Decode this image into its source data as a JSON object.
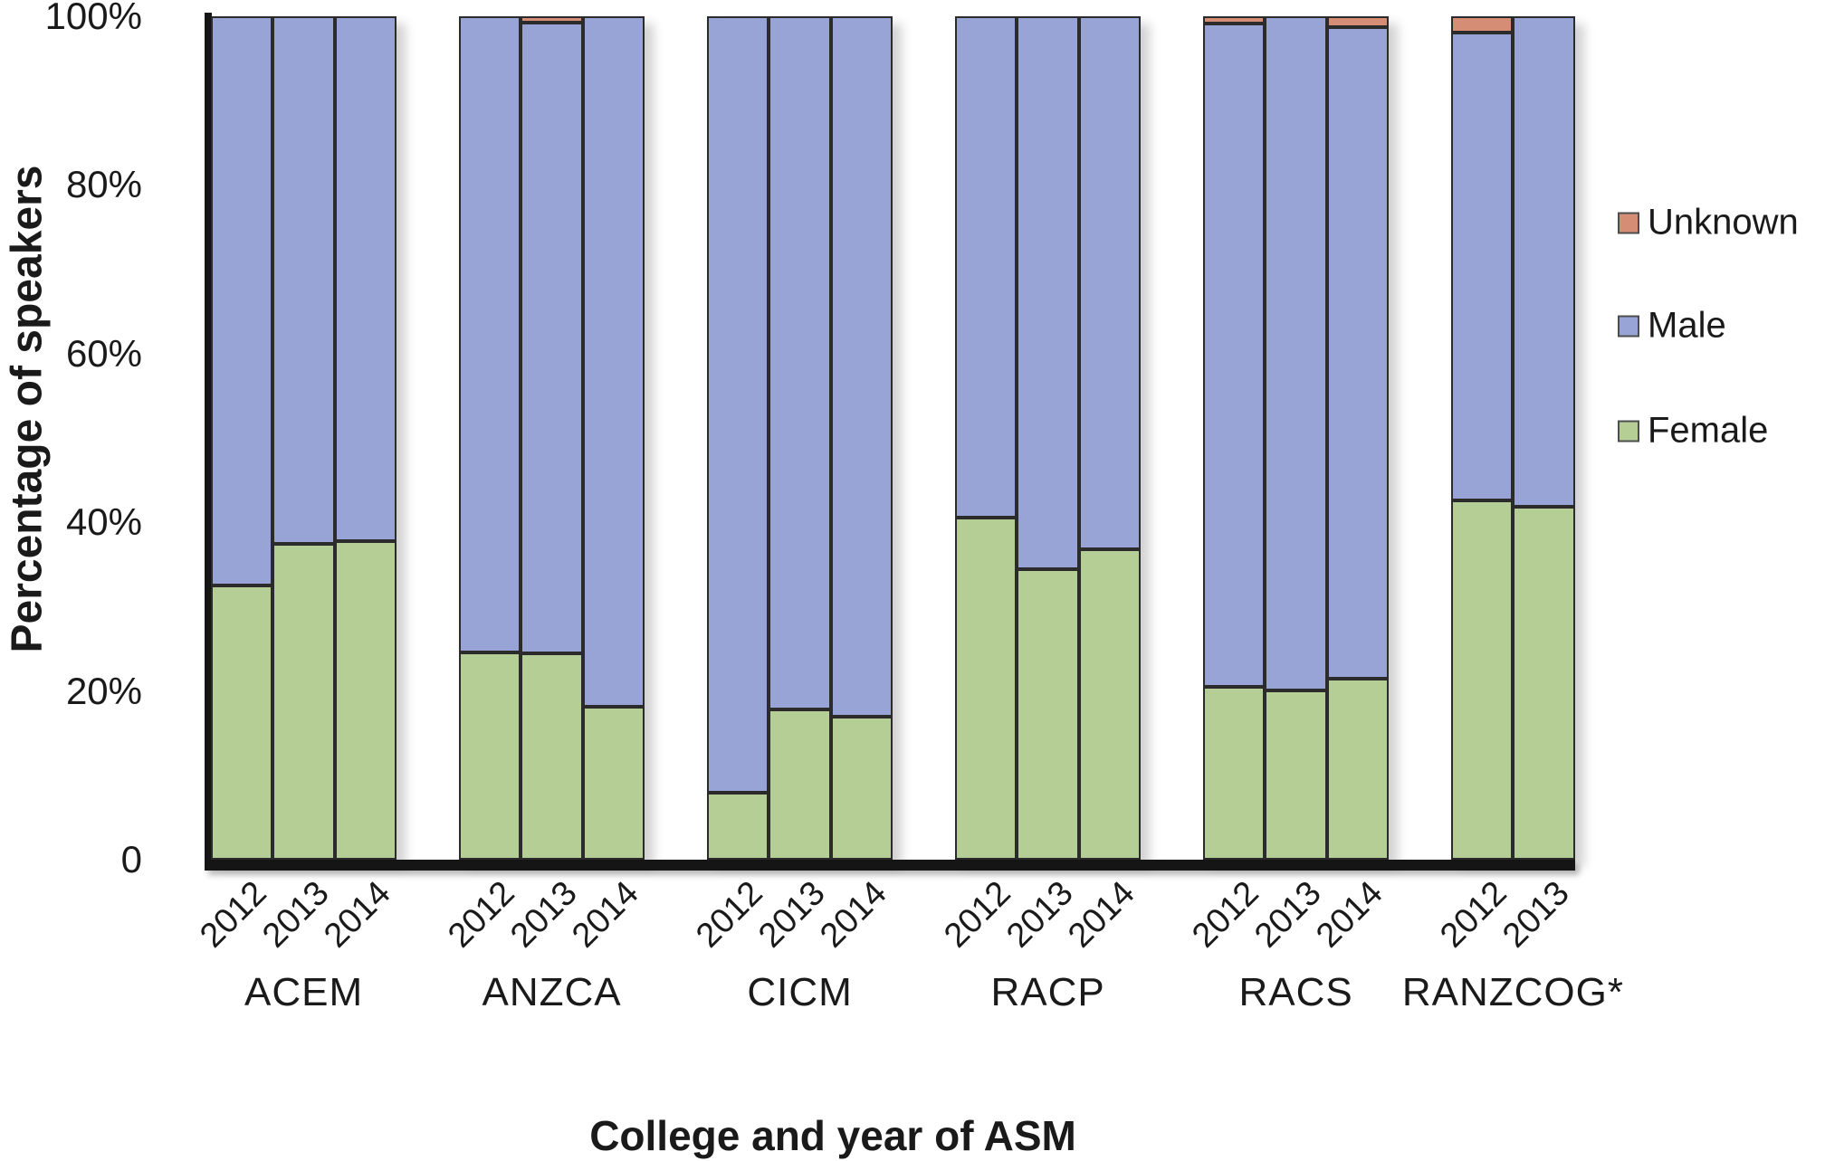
{
  "chart_data": {
    "type": "bar",
    "stacked": true,
    "title": "",
    "xlabel": "College and year of ASM",
    "ylabel": "Percentage of speakers",
    "ylim": [
      0,
      100
    ],
    "y_ticks": [
      "100%",
      "80%",
      "60%",
      "40%",
      "20%",
      "0"
    ],
    "grid": false,
    "legend_position": "right",
    "legend": [
      {
        "label": "Unknown",
        "color": "#D68D76"
      },
      {
        "label": "Male",
        "color": "#98A4D6"
      },
      {
        "label": "Female",
        "color": "#B5CE96"
      }
    ],
    "stack_order_top_to_bottom": [
      "Unknown",
      "Male",
      "Female"
    ],
    "groups": [
      {
        "college": "ACEM",
        "bars": [
          {
            "year": "2012",
            "values": {
              "Female": 32.5,
              "Male": 67.5,
              "Unknown": 0
            }
          },
          {
            "year": "2013",
            "values": {
              "Female": 37.4,
              "Male": 62.6,
              "Unknown": 0
            }
          },
          {
            "year": "2014",
            "values": {
              "Female": 37.8,
              "Male": 62.2,
              "Unknown": 0
            }
          }
        ]
      },
      {
        "college": "ANZCA",
        "bars": [
          {
            "year": "2012",
            "values": {
              "Female": 24.6,
              "Male": 75.4,
              "Unknown": 0
            }
          },
          {
            "year": "2013",
            "values": {
              "Female": 24.5,
              "Male": 74.7,
              "Unknown": 0.8
            }
          },
          {
            "year": "2014",
            "values": {
              "Female": 18.1,
              "Male": 81.9,
              "Unknown": 0
            }
          }
        ]
      },
      {
        "college": "CICM",
        "bars": [
          {
            "year": "2012",
            "values": {
              "Female": 7.9,
              "Male": 92.1,
              "Unknown": 0
            }
          },
          {
            "year": "2013",
            "values": {
              "Female": 17.8,
              "Male": 82.2,
              "Unknown": 0
            }
          },
          {
            "year": "2014",
            "values": {
              "Female": 17.0,
              "Male": 83.0,
              "Unknown": 0
            }
          }
        ]
      },
      {
        "college": "RACP",
        "bars": [
          {
            "year": "2012",
            "values": {
              "Female": 40.6,
              "Male": 59.4,
              "Unknown": 0
            }
          },
          {
            "year": "2013",
            "values": {
              "Female": 34.4,
              "Male": 65.6,
              "Unknown": 0
            }
          },
          {
            "year": "2014",
            "values": {
              "Female": 36.8,
              "Male": 63.2,
              "Unknown": 0
            }
          }
        ]
      },
      {
        "college": "RACS",
        "bars": [
          {
            "year": "2012",
            "values": {
              "Female": 20.5,
              "Male": 78.6,
              "Unknown": 0.9
            }
          },
          {
            "year": "2013",
            "values": {
              "Female": 20.1,
              "Male": 79.9,
              "Unknown": 0
            }
          },
          {
            "year": "2014",
            "values": {
              "Female": 21.5,
              "Male": 77.2,
              "Unknown": 1.3
            }
          }
        ]
      },
      {
        "college": "RANZCOG*",
        "bars": [
          {
            "year": "2012",
            "values": {
              "Female": 42.6,
              "Male": 55.5,
              "Unknown": 1.9
            }
          },
          {
            "year": "2013",
            "values": {
              "Female": 41.8,
              "Male": 58.2,
              "Unknown": 0
            }
          }
        ]
      }
    ]
  },
  "colors": {
    "axis": "#151515",
    "segment_border": "#2B2B2B",
    "text": "#1A1A1A",
    "background": "#FFFFFF"
  }
}
